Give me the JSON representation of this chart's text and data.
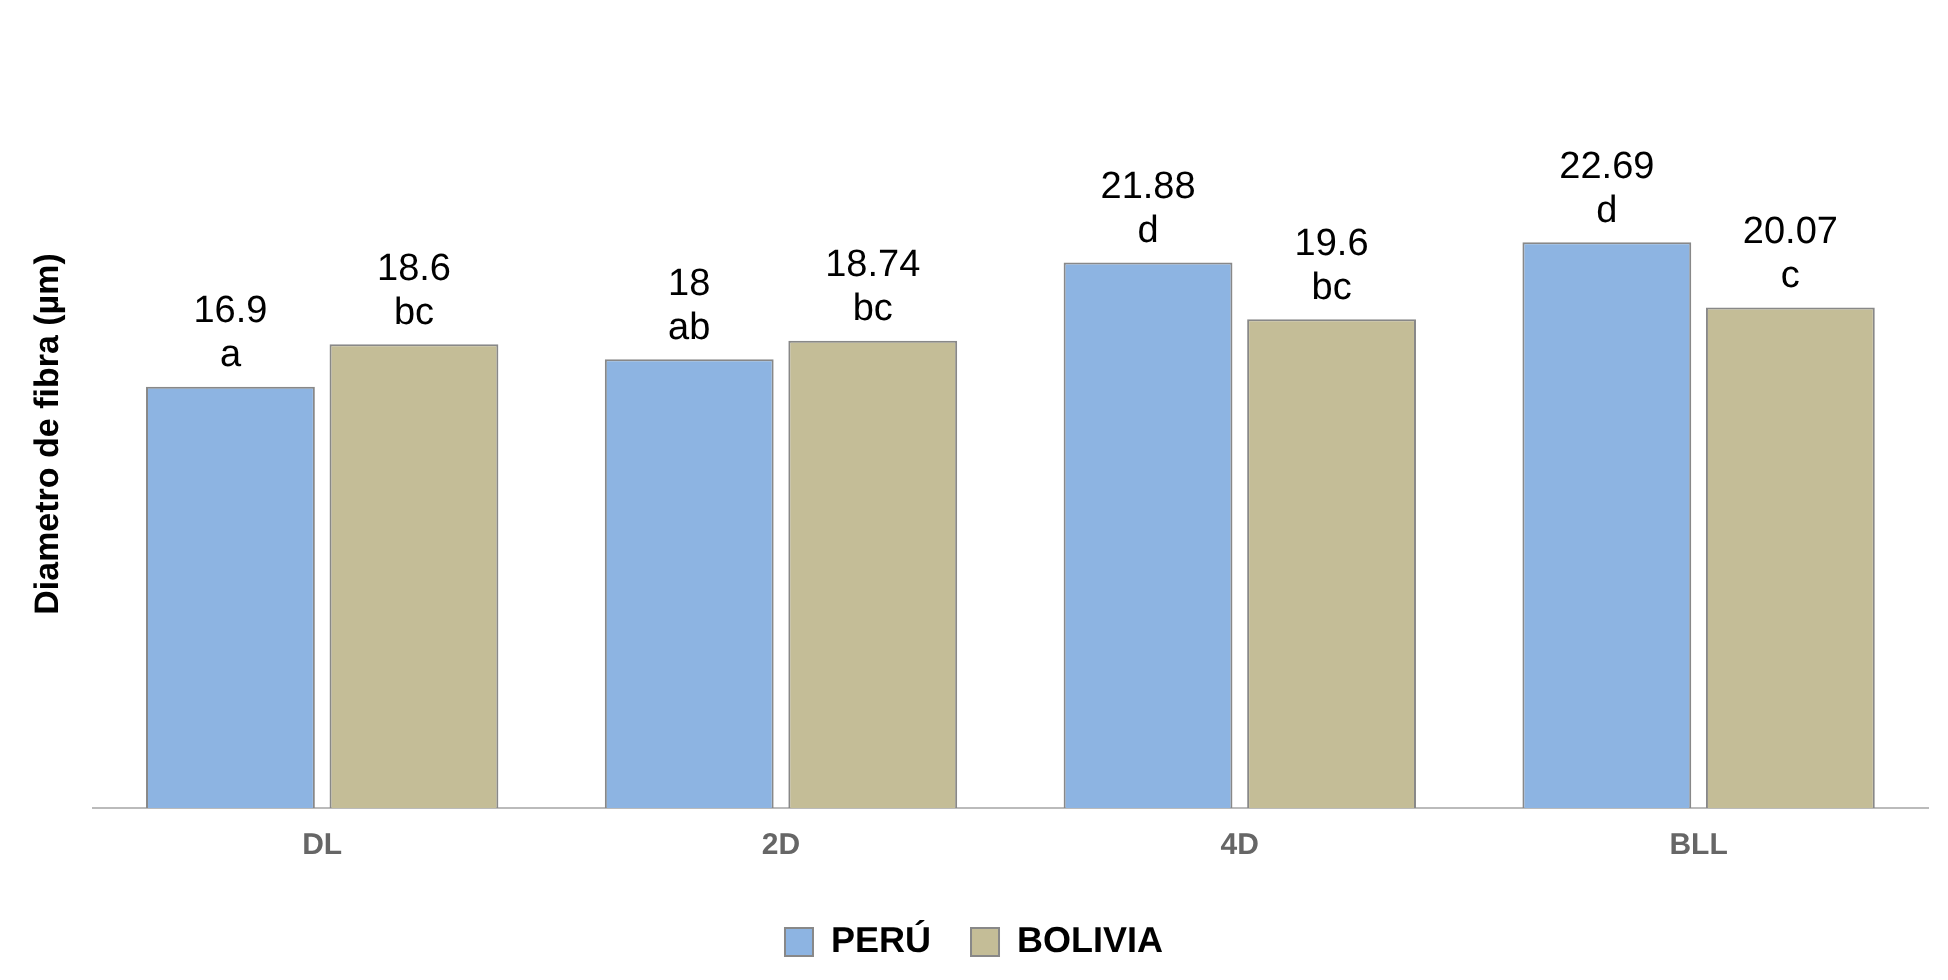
{
  "chart_data": {
    "type": "bar",
    "ylabel": "Diametro de fibra (µm)",
    "categories": [
      "DL",
      "2D",
      "4D",
      "BLL"
    ],
    "series": [
      {
        "name": "PERÚ",
        "color": "#8db4e2",
        "values": [
          16.9,
          18,
          21.88,
          22.69
        ],
        "value_labels": [
          "16.9\na",
          "18\nab",
          "21.88\nd",
          "22.69\nd"
        ]
      },
      {
        "name": "BOLIVIA",
        "color": "#c4bd97",
        "values": [
          18.6,
          18.74,
          19.6,
          20.07
        ],
        "value_labels": [
          "18.6\nbc",
          "18.74\nbc",
          "19.6\nbc",
          "20.07\nc"
        ]
      }
    ],
    "tick_labels": "x",
    "grid": false,
    "legend": "bottom"
  }
}
